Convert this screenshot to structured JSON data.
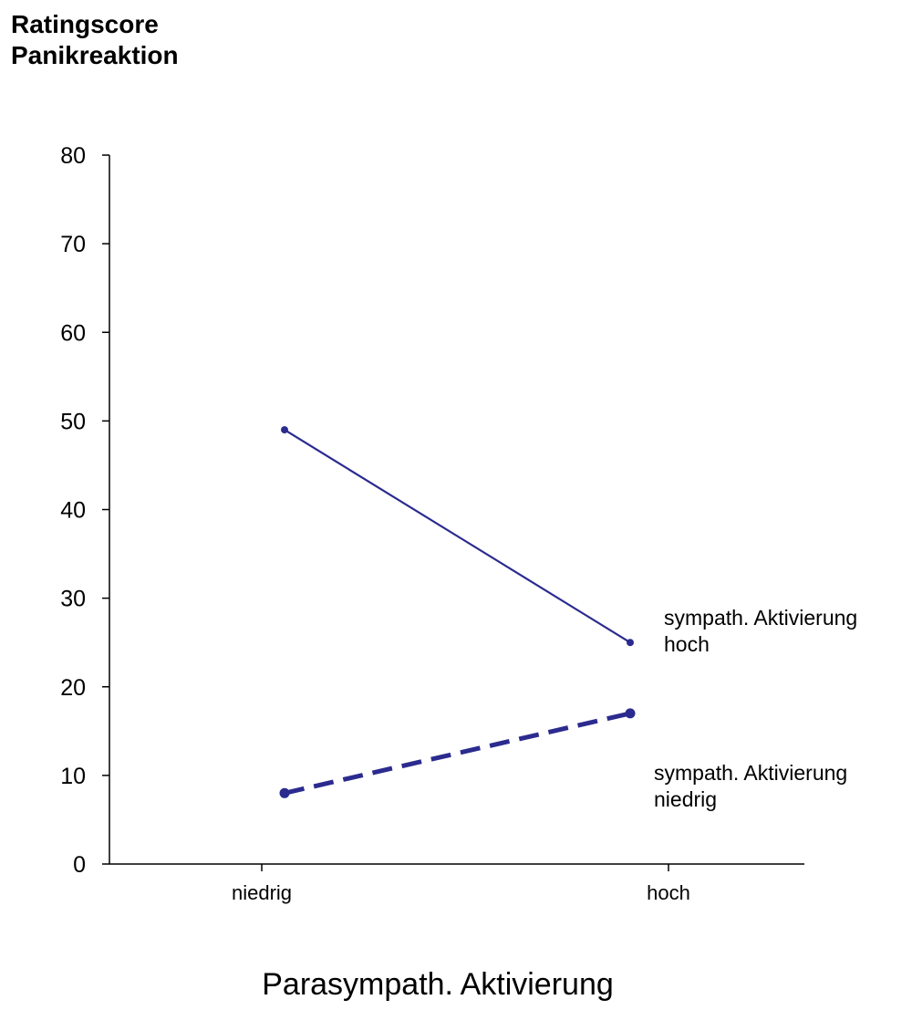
{
  "colors": {
    "series": "#2b2b8f",
    "axis": "#000000",
    "background": "#ffffff"
  },
  "chart_data": {
    "type": "line",
    "title": "",
    "ylabel_lines": [
      "Ratingscore",
      "Panikreaktion"
    ],
    "xlabel": "Parasympath. Aktivierung",
    "categories": [
      "niedrig",
      "hoch"
    ],
    "ylim": [
      0,
      80
    ],
    "yticks": [
      0,
      10,
      20,
      30,
      40,
      50,
      60,
      70,
      80
    ],
    "grid": false,
    "legend": "inline-right",
    "series": [
      {
        "name_lines": [
          "sympath. Aktivierung",
          "hoch"
        ],
        "values": [
          49,
          25
        ],
        "style": "solid"
      },
      {
        "name_lines": [
          "sympath. Aktivierung",
          "niedrig"
        ],
        "values": [
          8,
          17
        ],
        "style": "dashed"
      }
    ]
  }
}
